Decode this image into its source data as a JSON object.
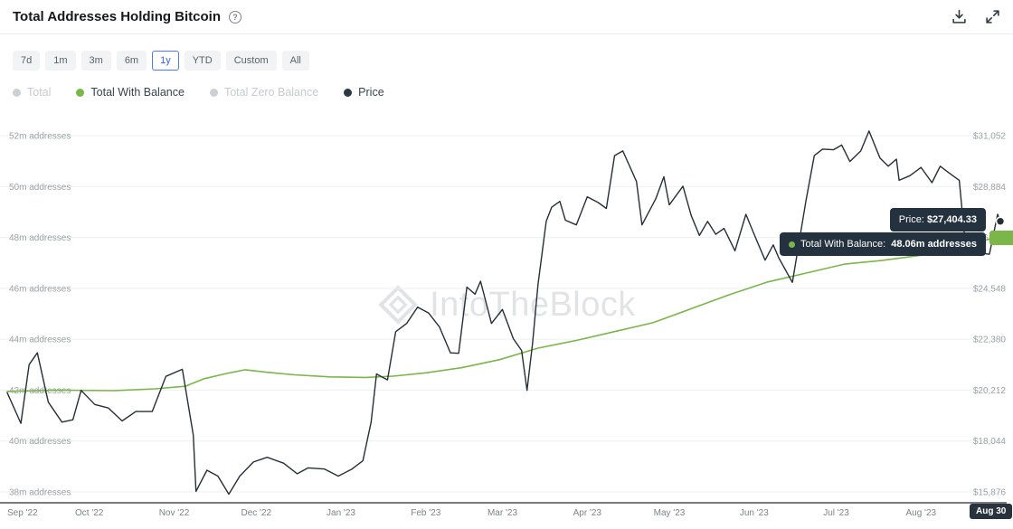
{
  "header": {
    "title": "Total Addresses Holding Bitcoin",
    "help": "?"
  },
  "time_ranges": {
    "options": [
      "7d",
      "1m",
      "3m",
      "6m",
      "1y",
      "YTD",
      "Custom",
      "All"
    ],
    "selected": "1y"
  },
  "legend": [
    {
      "label": "Total",
      "color": "#cbd0d4",
      "active": false
    },
    {
      "label": "Total With Balance",
      "color": "#7ab648",
      "active": true
    },
    {
      "label": "Total Zero Balance",
      "color": "#cbd0d4",
      "active": false
    },
    {
      "label": "Price",
      "color": "#2a3845",
      "active": true
    }
  ],
  "watermark": "IntoTheBlock",
  "tooltip": {
    "price_label": "Price:",
    "price_value": "$27,404.33",
    "balance_label": "Total With Balance:",
    "balance_value": "48.06m addresses"
  },
  "x_axis_current": "Aug 30",
  "chart_data": {
    "type": "line",
    "title": "Total Addresses Holding Bitcoin",
    "grid": true,
    "legend_position": "top",
    "x_range": [
      "2022-09-01",
      "2023-08-30"
    ],
    "x_tick_labels": [
      "Sep '22",
      "Oct '22",
      "Nov '22",
      "Dec '22",
      "Jan '23",
      "Feb '23",
      "Mar '23",
      "Apr '23",
      "May '23",
      "Jun '23",
      "Jul '23",
      "Aug '23"
    ],
    "x_tick_dates": [
      "2022-09-01",
      "2022-10-01",
      "2022-11-01",
      "2022-12-01",
      "2023-01-01",
      "2023-02-01",
      "2023-03-01",
      "2023-04-01",
      "2023-05-01",
      "2023-06-01",
      "2023-07-01",
      "2023-08-01"
    ],
    "left_axis": {
      "unit": "m addresses",
      "min": 38,
      "max": 52,
      "values": [
        52,
        50,
        48,
        46,
        44,
        42,
        40,
        38
      ],
      "labels": [
        "52m addresses",
        "50m addresses",
        "48m addresses",
        "46m addresses",
        "44m addresses",
        "42m addresses",
        "40m addresses",
        "38m addresses"
      ]
    },
    "right_axis": {
      "unit": "USD",
      "min": 15876,
      "max": 31052,
      "values": [
        31052,
        28884,
        26716,
        24548,
        22380,
        20212,
        18044,
        15876
      ],
      "labels": [
        "$31,052",
        "$28,884",
        "$26,716",
        "$24,548",
        "$22,380",
        "$20,212",
        "$18,044",
        "$15,876"
      ]
    },
    "series": [
      {
        "name": "Total With Balance",
        "axis": "left",
        "color": "#7ab648",
        "width": 1.6,
        "last_value_label": "48.06m addresses",
        "points": [
          [
            "2022-09-01",
            41.95
          ],
          [
            "2022-09-20",
            42.0
          ],
          [
            "2022-10-10",
            41.98
          ],
          [
            "2022-10-25",
            42.05
          ],
          [
            "2022-11-05",
            42.15
          ],
          [
            "2022-11-12",
            42.45
          ],
          [
            "2022-11-20",
            42.65
          ],
          [
            "2022-11-27",
            42.8
          ],
          [
            "2022-12-05",
            42.7
          ],
          [
            "2022-12-15",
            42.6
          ],
          [
            "2022-12-28",
            42.52
          ],
          [
            "2023-01-10",
            42.5
          ],
          [
            "2023-01-20",
            42.55
          ],
          [
            "2023-02-01",
            42.68
          ],
          [
            "2023-02-14",
            42.88
          ],
          [
            "2023-02-28",
            43.2
          ],
          [
            "2023-03-14",
            43.65
          ],
          [
            "2023-03-28",
            43.95
          ],
          [
            "2023-04-11",
            44.3
          ],
          [
            "2023-04-25",
            44.65
          ],
          [
            "2023-05-09",
            45.2
          ],
          [
            "2023-05-23",
            45.75
          ],
          [
            "2023-06-06",
            46.25
          ],
          [
            "2023-06-20",
            46.6
          ],
          [
            "2023-07-04",
            46.95
          ],
          [
            "2023-07-18",
            47.1
          ],
          [
            "2023-08-01",
            47.3
          ],
          [
            "2023-08-15",
            47.6
          ],
          [
            "2023-08-30",
            48.06
          ]
        ]
      },
      {
        "name": "Price",
        "axis": "right",
        "color": "#262f38",
        "width": 1.4,
        "last_value_label": "$27,404.33",
        "points": [
          [
            "2022-09-01",
            20100
          ],
          [
            "2022-09-06",
            18800
          ],
          [
            "2022-09-09",
            21300
          ],
          [
            "2022-09-12",
            21800
          ],
          [
            "2022-09-16",
            19700
          ],
          [
            "2022-09-21",
            18850
          ],
          [
            "2022-09-25",
            18950
          ],
          [
            "2022-09-28",
            20200
          ],
          [
            "2022-10-03",
            19600
          ],
          [
            "2022-10-08",
            19450
          ],
          [
            "2022-10-13",
            18900
          ],
          [
            "2022-10-18",
            19300
          ],
          [
            "2022-10-24",
            19300
          ],
          [
            "2022-10-29",
            20800
          ],
          [
            "2022-11-04",
            21100
          ],
          [
            "2022-11-08",
            18300
          ],
          [
            "2022-11-09",
            15900
          ],
          [
            "2022-11-13",
            16800
          ],
          [
            "2022-11-17",
            16550
          ],
          [
            "2022-11-21",
            15780
          ],
          [
            "2022-11-25",
            16550
          ],
          [
            "2022-11-30",
            17150
          ],
          [
            "2022-12-05",
            17350
          ],
          [
            "2022-12-11",
            17100
          ],
          [
            "2022-12-16",
            16650
          ],
          [
            "2022-12-20",
            16900
          ],
          [
            "2022-12-26",
            16850
          ],
          [
            "2022-12-31",
            16550
          ],
          [
            "2023-01-05",
            16850
          ],
          [
            "2023-01-09",
            17200
          ],
          [
            "2023-01-12",
            18850
          ],
          [
            "2023-01-14",
            20900
          ],
          [
            "2023-01-18",
            20650
          ],
          [
            "2023-01-21",
            22700
          ],
          [
            "2023-01-25",
            23050
          ],
          [
            "2023-01-29",
            23750
          ],
          [
            "2023-02-02",
            23500
          ],
          [
            "2023-02-06",
            22900
          ],
          [
            "2023-02-10",
            21800
          ],
          [
            "2023-02-13",
            21780
          ],
          [
            "2023-02-16",
            24600
          ],
          [
            "2023-02-19",
            24300
          ],
          [
            "2023-02-21",
            24850
          ],
          [
            "2023-02-25",
            23050
          ],
          [
            "2023-03-01",
            23650
          ],
          [
            "2023-03-05",
            22400
          ],
          [
            "2023-03-08",
            21900
          ],
          [
            "2023-03-10",
            20200
          ],
          [
            "2023-03-12",
            22200
          ],
          [
            "2023-03-14",
            24700
          ],
          [
            "2023-03-17",
            27400
          ],
          [
            "2023-03-19",
            28000
          ],
          [
            "2023-03-22",
            28250
          ],
          [
            "2023-03-24",
            27450
          ],
          [
            "2023-03-28",
            27250
          ],
          [
            "2023-04-01",
            28450
          ],
          [
            "2023-04-05",
            28200
          ],
          [
            "2023-04-08",
            27950
          ],
          [
            "2023-04-11",
            30200
          ],
          [
            "2023-04-14",
            30400
          ],
          [
            "2023-04-19",
            29100
          ],
          [
            "2023-04-21",
            27250
          ],
          [
            "2023-04-26",
            28350
          ],
          [
            "2023-04-29",
            29300
          ],
          [
            "2023-05-01",
            28100
          ],
          [
            "2023-05-06",
            28900
          ],
          [
            "2023-05-09",
            27650
          ],
          [
            "2023-05-12",
            26800
          ],
          [
            "2023-05-15",
            27400
          ],
          [
            "2023-05-18",
            26850
          ],
          [
            "2023-05-21",
            27100
          ],
          [
            "2023-05-25",
            26150
          ],
          [
            "2023-05-29",
            27700
          ],
          [
            "2023-06-01",
            26850
          ],
          [
            "2023-06-05",
            25750
          ],
          [
            "2023-06-08",
            26400
          ],
          [
            "2023-06-10",
            25850
          ],
          [
            "2023-06-15",
            24800
          ],
          [
            "2023-06-20",
            28300
          ],
          [
            "2023-06-23",
            30200
          ],
          [
            "2023-06-26",
            30480
          ],
          [
            "2023-06-30",
            30450
          ],
          [
            "2023-07-03",
            30650
          ],
          [
            "2023-07-06",
            29950
          ],
          [
            "2023-07-10",
            30400
          ],
          [
            "2023-07-13",
            31250
          ],
          [
            "2023-07-17",
            30100
          ],
          [
            "2023-07-20",
            29750
          ],
          [
            "2023-07-23",
            30050
          ],
          [
            "2023-07-24",
            29150
          ],
          [
            "2023-07-28",
            29350
          ],
          [
            "2023-08-01",
            29700
          ],
          [
            "2023-08-05",
            29050
          ],
          [
            "2023-08-08",
            29750
          ],
          [
            "2023-08-12",
            29400
          ],
          [
            "2023-08-15",
            29150
          ],
          [
            "2023-08-17",
            26650
          ],
          [
            "2023-08-20",
            26100
          ],
          [
            "2023-08-23",
            26050
          ],
          [
            "2023-08-26",
            26000
          ],
          [
            "2023-08-29",
            27700
          ],
          [
            "2023-08-30",
            27404.33
          ]
        ]
      }
    ]
  }
}
